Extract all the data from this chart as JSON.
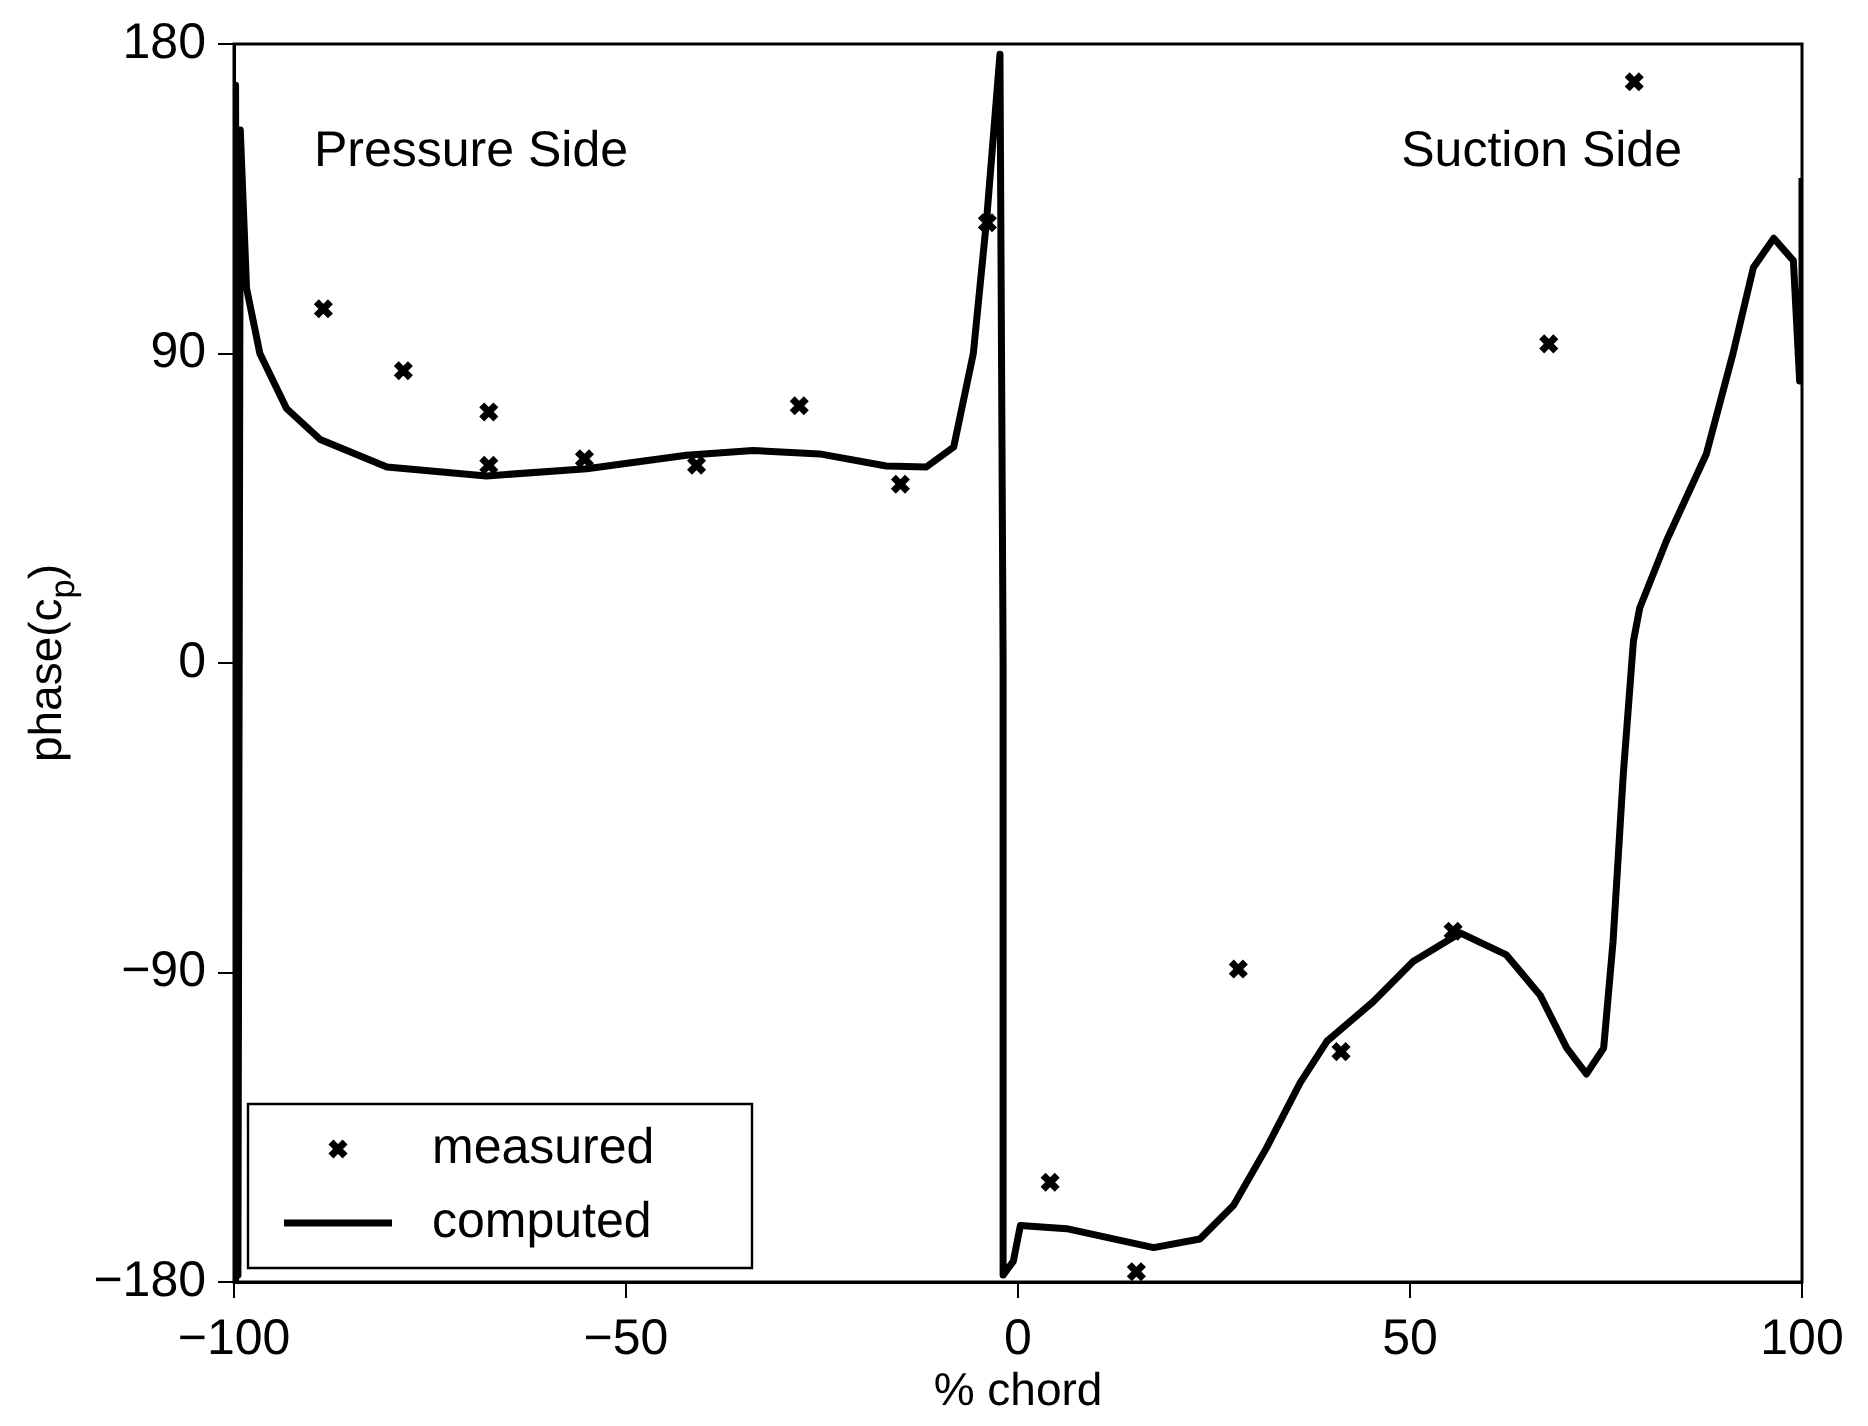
{
  "chart_data": {
    "type": "line",
    "xlabel": "% chord",
    "ylabel": "phase(c$_{p}$)",
    "xlim": [
      -100,
      100
    ],
    "ylim": [
      -180,
      180
    ],
    "xticks": [
      {
        "value": -100,
        "label": "−100"
      },
      {
        "value": -50,
        "label": "−50"
      },
      0,
      50,
      100
    ],
    "yticks": [
      {
        "value": -180,
        "label": "−180"
      },
      {
        "value": -90,
        "label": "−90"
      },
      0,
      90,
      180
    ],
    "grid": false,
    "legend": "bottom left",
    "annotations": [
      "Pressure Side",
      "Suction Side"
    ],
    "series": [
      {
        "name": "measured",
        "type": "scatter",
        "marker": "cross",
        "color": "#000000",
        "x": [
          -88.6,
          -78.4,
          -67.5,
          -67.5,
          -55.3,
          -41,
          -27.9,
          -15,
          -3.9,
          4.1,
          15.1,
          28.1,
          41.2,
          55.5,
          67.7,
          78.6
        ],
        "values": [
          103,
          85,
          73,
          57.5,
          59.4,
          57.5,
          74.8,
          52,
          128,
          -151,
          -177,
          -89,
          -113,
          -78,
          92.8,
          169
        ]
      },
      {
        "name": "computed",
        "type": "line",
        "marker": "none",
        "line_style": "solid",
        "color": "#000000",
        "x": [
          -100,
          -99.8,
          -99.5,
          -99.2,
          -98.4,
          -96.7,
          -93.3,
          -89,
          -80.5,
          -67.8,
          -55,
          -42.3,
          -33.8,
          -25.3,
          -16.8,
          -11.7,
          -8.2,
          -5.7,
          -4,
          -2.3,
          -1.9,
          -1.9,
          -0.6,
          0.3,
          6.2,
          17.3,
          23.2,
          27.5,
          31.7,
          36,
          39.4,
          45.3,
          50.4,
          56.4,
          62.3,
          66.6,
          70,
          72.5,
          74.7,
          75.9,
          77.2,
          78.5,
          79.3,
          82.7,
          87.8,
          91.2,
          93.8,
          96.4,
          98.9,
          99.7,
          100,
          100
        ],
        "values": [
          -180,
          168,
          -178,
          155,
          109,
          90,
          74,
          65,
          57,
          54.4,
          56.5,
          60.4,
          61.8,
          60.8,
          57.3,
          57,
          62.8,
          90,
          129,
          177,
          0,
          -178,
          -174,
          -163.6,
          -164.5,
          -170,
          -167.5,
          -157.7,
          -141,
          -122,
          -110,
          -98.5,
          -86.8,
          -78.5,
          -84.9,
          -96.6,
          -112,
          -119.5,
          -112,
          -81,
          -32.5,
          6.4,
          16,
          35.5,
          60.8,
          90,
          115,
          123.5,
          117,
          82,
          82,
          141
        ]
      }
    ]
  }
}
